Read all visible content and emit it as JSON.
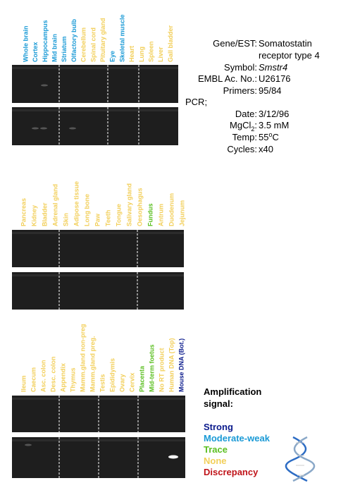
{
  "panels": [
    {
      "lanes": [
        {
          "label": "Whole brain",
          "color": "#1a9ad6"
        },
        {
          "label": "Cortex",
          "color": "#1a9ad6"
        },
        {
          "label": "Hippocampus",
          "color": "#1a9ad6"
        },
        {
          "label": "Mid brain",
          "color": "#1a9ad6"
        },
        {
          "label": "Striatum",
          "color": "#1a9ad6"
        },
        {
          "label": "Olfactory bulb",
          "color": "#1a9ad6"
        },
        {
          "label": "Cerebellum",
          "color": "#f2cf5a"
        },
        {
          "label": "Spinal cord",
          "color": "#f2cf5a"
        },
        {
          "label": "Pituitary gland",
          "color": "#f2cf5a"
        },
        {
          "label": "Eye",
          "color": "#1a9ad6"
        },
        {
          "label": "Skeletal muscle",
          "color": "#1a9ad6"
        },
        {
          "label": "Heart",
          "color": "#f2cf5a"
        },
        {
          "label": "Lung",
          "color": "#f2cf5a"
        },
        {
          "label": "Spleen",
          "color": "#f2cf5a"
        },
        {
          "label": "Liver",
          "color": "#f2cf5a"
        },
        {
          "label": "Gall bladder",
          "color": "#f2cf5a"
        }
      ]
    },
    {
      "lanes": [
        {
          "label": "Pancreas",
          "color": "#f2cf5a"
        },
        {
          "label": "Kidney",
          "color": "#f2cf5a"
        },
        {
          "label": "Bladder",
          "color": "#f2cf5a"
        },
        {
          "label": "Adrenal gland",
          "color": "#f2cf5a"
        },
        {
          "label": "Skin",
          "color": "#f2cf5a"
        },
        {
          "label": "Adipose tissue",
          "color": "#f2cf5a"
        },
        {
          "label": "Long bone",
          "color": "#f2cf5a"
        },
        {
          "label": "Paw",
          "color": "#f2cf5a"
        },
        {
          "label": "Teeth",
          "color": "#f2cf5a"
        },
        {
          "label": "Tongue",
          "color": "#f2cf5a"
        },
        {
          "label": "Salivary gland",
          "color": "#f2cf5a"
        },
        {
          "label": "Oesophagus",
          "color": "#f2cf5a"
        },
        {
          "label": "Fundus",
          "color": "#5bbf21"
        },
        {
          "label": "Antrum",
          "color": "#f2cf5a"
        },
        {
          "label": "Duodenum",
          "color": "#f2cf5a"
        },
        {
          "label": "Jejunum",
          "color": "#f2cf5a"
        }
      ]
    },
    {
      "lanes": [
        {
          "label": "Ileum",
          "color": "#f2cf5a"
        },
        {
          "label": "Caecum",
          "color": "#f2cf5a"
        },
        {
          "label": "Asc. colon",
          "color": "#f2cf5a"
        },
        {
          "label": "Desc. colon",
          "color": "#f2cf5a"
        },
        {
          "label": "Appendix",
          "color": "#f2cf5a"
        },
        {
          "label": "Thymus",
          "color": "#f2cf5a"
        },
        {
          "label": "Mamm.gland non-preg",
          "color": "#f2cf5a"
        },
        {
          "label": "Mamm.gland preg.",
          "color": "#f2cf5a"
        },
        {
          "label": "Testis",
          "color": "#f2cf5a"
        },
        {
          "label": "Epididymis",
          "color": "#f2cf5a"
        },
        {
          "label": "Ovary",
          "color": "#f2cf5a"
        },
        {
          "label": "Cervix",
          "color": "#f2cf5a"
        },
        {
          "label": "Placenta",
          "color": "#5bbf21"
        },
        {
          "label": "Mid-term foetus",
          "color": "#5bbf21"
        },
        {
          "label": "No RT product",
          "color": "#f2cf5a"
        },
        {
          "label": "Human DNA (Top)",
          "color": "#f2cf5a"
        },
        {
          "label": "Mouse DNA (Bot.)",
          "color": "#0a1a8c"
        }
      ]
    }
  ],
  "info": {
    "gene_label": "Gene/EST:",
    "gene_line1": "Somatostatin",
    "gene_line2": "receptor type 4",
    "symbol_label": "Symbol:",
    "symbol": "Smstr4",
    "embl_label": "EMBL Ac. No.:",
    "embl": "U26176",
    "primers_label": "Primers:",
    "primers": "95/84",
    "pcr": "PCR;",
    "date_label": "Date:",
    "date": "3/12/96",
    "mgcl_label": "MgCl",
    "mgcl_sub": "2",
    "mgcl_colon": ":",
    "mgcl": "3.5 mM",
    "temp_label": "Temp:",
    "temp": "55",
    "temp_sup": "o",
    "temp_unit": "C",
    "cycles_label": "Cycles:",
    "cycles": "x40"
  },
  "legend": {
    "title1": "Amplification",
    "title2": "signal:",
    "items": [
      {
        "label": "Strong",
        "color": "#0a1a8c"
      },
      {
        "label": "Moderate-weak",
        "color": "#1a9ad6"
      },
      {
        "label": "Trace",
        "color": "#5bbf21"
      },
      {
        "label": "None",
        "color": "#f2cf5a"
      },
      {
        "label": "Discrepancy",
        "color": "#c0141a"
      }
    ]
  }
}
